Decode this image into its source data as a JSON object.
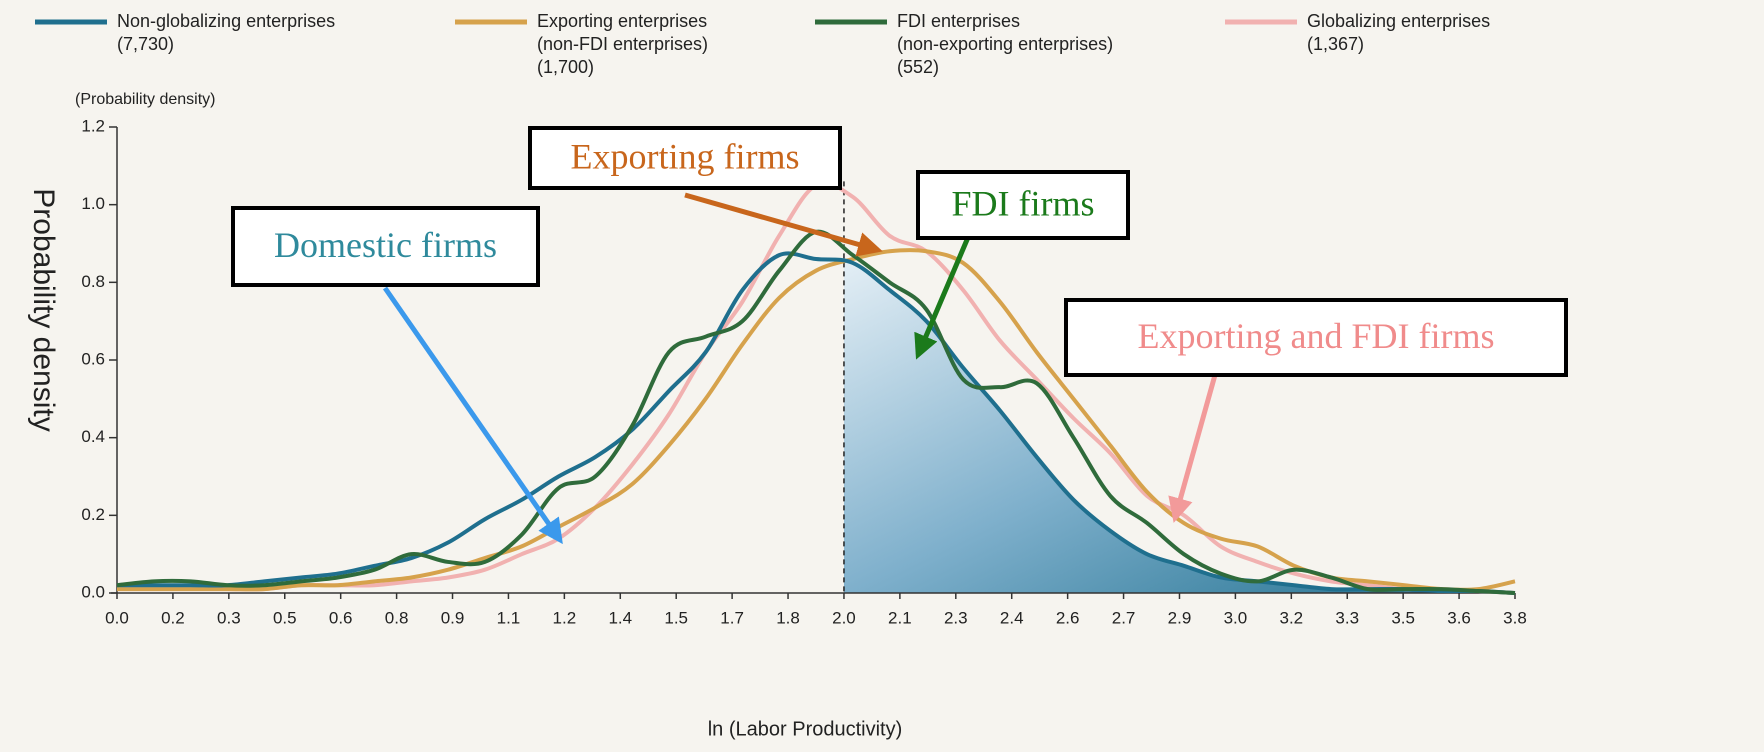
{
  "chart_data": {
    "type": "line",
    "y_unit_label": "(Probability density)",
    "ylabel": "Probability density",
    "xlabel": "ln (Labor Productivity)",
    "x": [
      0,
      0.1,
      0.2,
      0.3,
      0.4,
      0.5,
      0.6,
      0.7,
      0.8,
      0.9,
      1.0,
      1.1,
      1.2,
      1.3,
      1.4,
      1.5,
      1.6,
      1.7,
      1.8,
      1.9,
      2.0,
      2.1,
      2.2,
      2.3,
      2.4,
      2.5,
      2.6,
      2.7,
      2.8,
      2.9,
      3.0,
      3.1,
      3.2,
      3.3,
      3.4,
      3.5,
      3.6,
      3.7,
      3.8
    ],
    "series": [
      {
        "name": [
          "Non-globalizing enterprises",
          "(7,730)"
        ],
        "color": "#1f6f8e",
        "values": [
          0.02,
          0.02,
          0.02,
          0.02,
          0.03,
          0.04,
          0.05,
          0.07,
          0.09,
          0.13,
          0.19,
          0.24,
          0.3,
          0.35,
          0.42,
          0.52,
          0.62,
          0.78,
          0.87,
          0.86,
          0.85,
          0.78,
          0.7,
          0.58,
          0.47,
          0.35,
          0.24,
          0.16,
          0.1,
          0.07,
          0.04,
          0.03,
          0.02,
          0.01,
          0.01,
          0.01,
          0.005,
          0.005,
          0
        ]
      },
      {
        "name": [
          "Exporting enterprises",
          "(non-FDI enterprises)",
          "(1,700)"
        ],
        "color": "#d6a24c",
        "values": [
          0.01,
          0.01,
          0.01,
          0.01,
          0.01,
          0.02,
          0.02,
          0.03,
          0.04,
          0.06,
          0.09,
          0.12,
          0.17,
          0.22,
          0.28,
          0.38,
          0.5,
          0.64,
          0.76,
          0.83,
          0.86,
          0.88,
          0.88,
          0.85,
          0.75,
          0.62,
          0.5,
          0.38,
          0.26,
          0.18,
          0.14,
          0.12,
          0.07,
          0.04,
          0.03,
          0.02,
          0.01,
          0.01,
          0.03
        ]
      },
      {
        "name": [
          "FDI enterprises",
          "(non-exporting enterprises)",
          "(552)"
        ],
        "color": "#2f6b3b",
        "values": [
          0.02,
          0.03,
          0.03,
          0.02,
          0.02,
          0.03,
          0.04,
          0.06,
          0.1,
          0.08,
          0.08,
          0.15,
          0.27,
          0.3,
          0.43,
          0.62,
          0.66,
          0.7,
          0.83,
          0.93,
          0.87,
          0.8,
          0.73,
          0.55,
          0.53,
          0.54,
          0.4,
          0.25,
          0.18,
          0.1,
          0.05,
          0.03,
          0.06,
          0.04,
          0.01,
          0.01,
          0.01,
          0.005,
          0
        ]
      },
      {
        "name": [
          "Globalizing enterprises",
          "(1,367)"
        ],
        "color": "#f1b1b0",
        "values": [
          0.01,
          0.01,
          0.01,
          0.01,
          0.01,
          0.02,
          0.02,
          0.02,
          0.03,
          0.04,
          0.06,
          0.1,
          0.14,
          0.22,
          0.33,
          0.46,
          0.62,
          0.75,
          0.92,
          1.05,
          1.02,
          0.92,
          0.88,
          0.78,
          0.65,
          0.55,
          0.45,
          0.36,
          0.25,
          0.2,
          0.12,
          0.08,
          0.05,
          0.03,
          0.02,
          0.01,
          0.01,
          0.005,
          0
        ]
      }
    ],
    "threshold_x": 1.976,
    "xlim": [
      0,
      3.8
    ],
    "xticks": [
      {
        "value": 0,
        "label": "0.0"
      },
      {
        "value": 0.152,
        "label": "0.2"
      },
      {
        "value": 0.304,
        "label": "0.3"
      },
      {
        "value": 0.456,
        "label": "0.5"
      },
      {
        "value": 0.608,
        "label": "0.6"
      },
      {
        "value": 0.76,
        "label": "0.8"
      },
      {
        "value": 0.912,
        "label": "0.9"
      },
      {
        "value": 1.064,
        "label": "1.1"
      },
      {
        "value": 1.216,
        "label": "1.2"
      },
      {
        "value": 1.368,
        "label": "1.4"
      },
      {
        "value": 1.52,
        "label": "1.5"
      },
      {
        "value": 1.672,
        "label": "1.7"
      },
      {
        "value": 1.824,
        "label": "1.8"
      },
      {
        "value": 1.976,
        "label": "2.0"
      },
      {
        "value": 2.128,
        "label": "2.1"
      },
      {
        "value": 2.28,
        "label": "2.3"
      },
      {
        "value": 2.432,
        "label": "2.4"
      },
      {
        "value": 2.584,
        "label": "2.6"
      },
      {
        "value": 2.736,
        "label": "2.7"
      },
      {
        "value": 2.888,
        "label": "2.9"
      },
      {
        "value": 3.04,
        "label": "3.0"
      },
      {
        "value": 3.192,
        "label": "3.2"
      },
      {
        "value": 3.344,
        "label": "3.3"
      },
      {
        "value": 3.496,
        "label": "3.5"
      },
      {
        "value": 3.648,
        "label": "3.6"
      },
      {
        "value": 3.8,
        "label": "3.8"
      }
    ],
    "ylim": [
      0,
      1.2
    ],
    "yticks": [
      {
        "value": 0,
        "label": "0.0"
      },
      {
        "value": 0.2,
        "label": "0.2"
      },
      {
        "value": 0.4,
        "label": "0.4"
      },
      {
        "value": 0.6,
        "label": "0.6"
      },
      {
        "value": 0.8,
        "label": "0.8"
      },
      {
        "value": 1,
        "label": "1.0"
      },
      {
        "value": 1.2,
        "label": "1.2"
      }
    ],
    "annotations": [
      {
        "text": "Domestic firms",
        "color": "#2f8a9c",
        "arrow_color": "#3b99ec"
      },
      {
        "text": "Exporting firms",
        "color": "#c8661c",
        "arrow_color": "#c8661c"
      },
      {
        "text": "FDI firms",
        "color": "#1b7a1b",
        "arrow_color": "#1b7a1b"
      },
      {
        "text": "Exporting and FDI firms",
        "color": "#f08b8b",
        "arrow_color": "#f29a9a"
      }
    ]
  }
}
